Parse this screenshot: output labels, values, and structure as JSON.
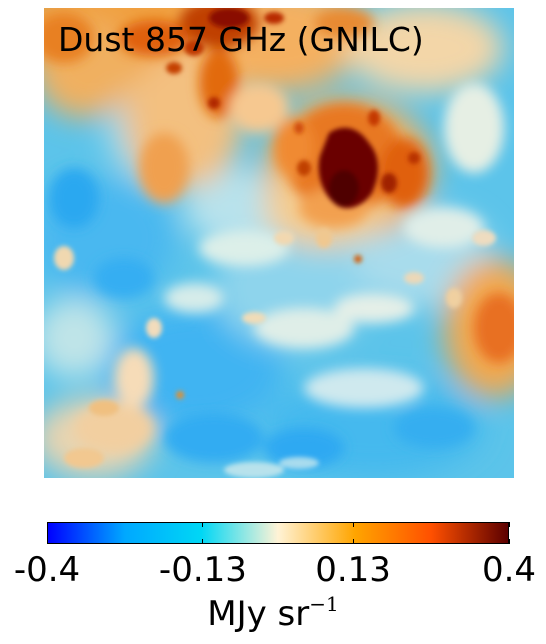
{
  "map": {
    "title": "Dust 857 GHz (GNILC)",
    "background_level_color": "#5cc4ea"
  },
  "colorbar": {
    "min": -0.4,
    "max": 0.4,
    "ticks": [
      {
        "value": -0.4,
        "label": "-0.4"
      },
      {
        "value": -0.13,
        "label": "-0.13"
      },
      {
        "value": 0.13,
        "label": "0.13"
      },
      {
        "value": 0.4,
        "label": "0.4"
      }
    ],
    "unit_base": "MJy sr",
    "unit_exponent": "−1",
    "colors": [
      "#0000ff",
      "#00a8ff",
      "#00d7f5",
      "#fff3d6",
      "#ffa500",
      "#ff5000",
      "#5c0000"
    ]
  }
}
